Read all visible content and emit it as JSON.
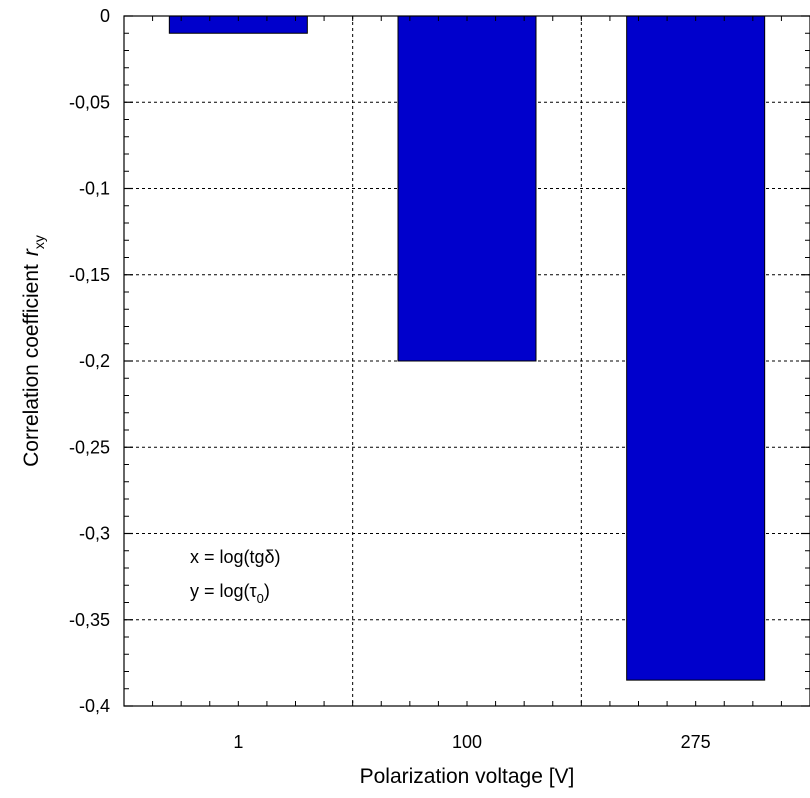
{
  "chart_data": {
    "type": "bar",
    "categories": [
      "1",
      "100",
      "275"
    ],
    "values": [
      -0.01,
      -0.2,
      -0.385
    ],
    "xlabel": "Polarization voltage [V]",
    "ylabel": "Correlation coefficient",
    "ylabel_symbol": "r",
    "ylabel_subscript": "xy",
    "ylim": [
      -0.4,
      0
    ],
    "yticks": [
      0,
      -0.05,
      -0.1,
      -0.15,
      -0.2,
      -0.25,
      -0.3,
      -0.35,
      -0.4
    ],
    "ytick_labels": [
      "0",
      "-0,05",
      "-0,1",
      "-0,15",
      "-0,2",
      "-0,25",
      "-0,3",
      "-0,35",
      "-0,4"
    ],
    "grid": true,
    "bar_color": "#0000cc",
    "annotation": {
      "line1": "x = log(tgδ)",
      "line2_prefix": "y = log(τ",
      "line2_sub": "0",
      "line2_suffix": ")"
    }
  }
}
